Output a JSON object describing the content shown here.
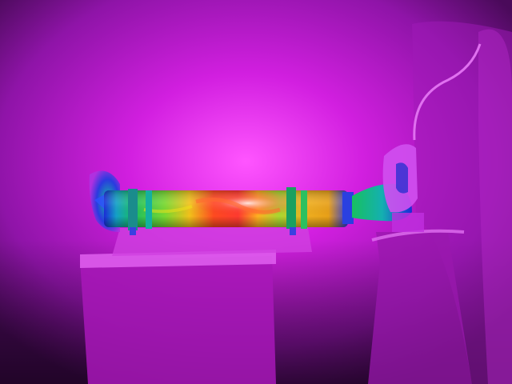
{
  "image": {
    "kind": "thermal-infrared-photo",
    "palette": "iron-rainbow",
    "subject": "heated-cylinder-on-table",
    "colors": {
      "background_cold": "#3a0a44",
      "ambient": "#c21ad0",
      "glow": "#ff40ff",
      "cool": "#1a2bd9",
      "mid": "#18c060",
      "warm": "#f2e21a",
      "hot": "#ff3020",
      "hottest": "#fff0f0"
    }
  }
}
